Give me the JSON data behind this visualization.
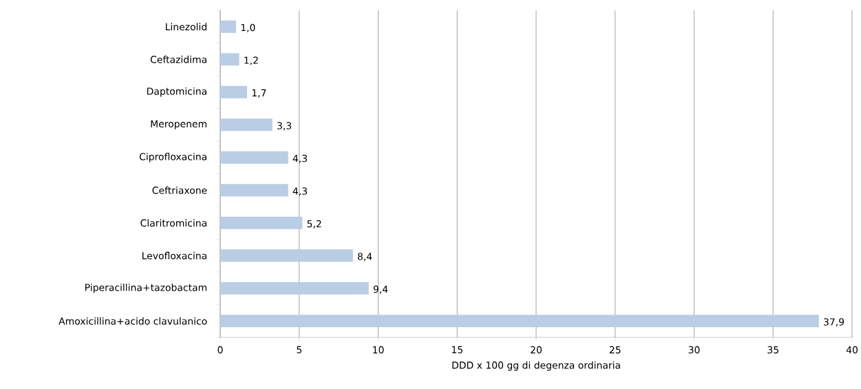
{
  "chart_data": {
    "type": "bar",
    "orientation": "horizontal",
    "categories": [
      "Linezolid",
      "Ceftazidima",
      "Daptomicina",
      "Meropenem",
      "Ciprofloxacina",
      "Ceftriaxone",
      "Claritromicina",
      "Levofloxacina",
      "Piperacillina+tazobactam",
      "Amoxicillina+acido clavulanico"
    ],
    "values": [
      1.0,
      1.2,
      1.7,
      3.3,
      4.3,
      4.3,
      5.2,
      8.4,
      9.4,
      37.9
    ],
    "value_labels": [
      "1,0",
      "1,2",
      "1,7",
      "3,3",
      "4,3",
      "4,3",
      "5,2",
      "8,4",
      "9,4",
      "37,9"
    ],
    "color": "#b9cde5",
    "xlabel": "DDD x 100 gg di degenza ordinaria",
    "xlim": [
      0,
      40
    ],
    "xticks": [
      0,
      5,
      10,
      15,
      20,
      25,
      30,
      35,
      40
    ],
    "grid": "x"
  }
}
